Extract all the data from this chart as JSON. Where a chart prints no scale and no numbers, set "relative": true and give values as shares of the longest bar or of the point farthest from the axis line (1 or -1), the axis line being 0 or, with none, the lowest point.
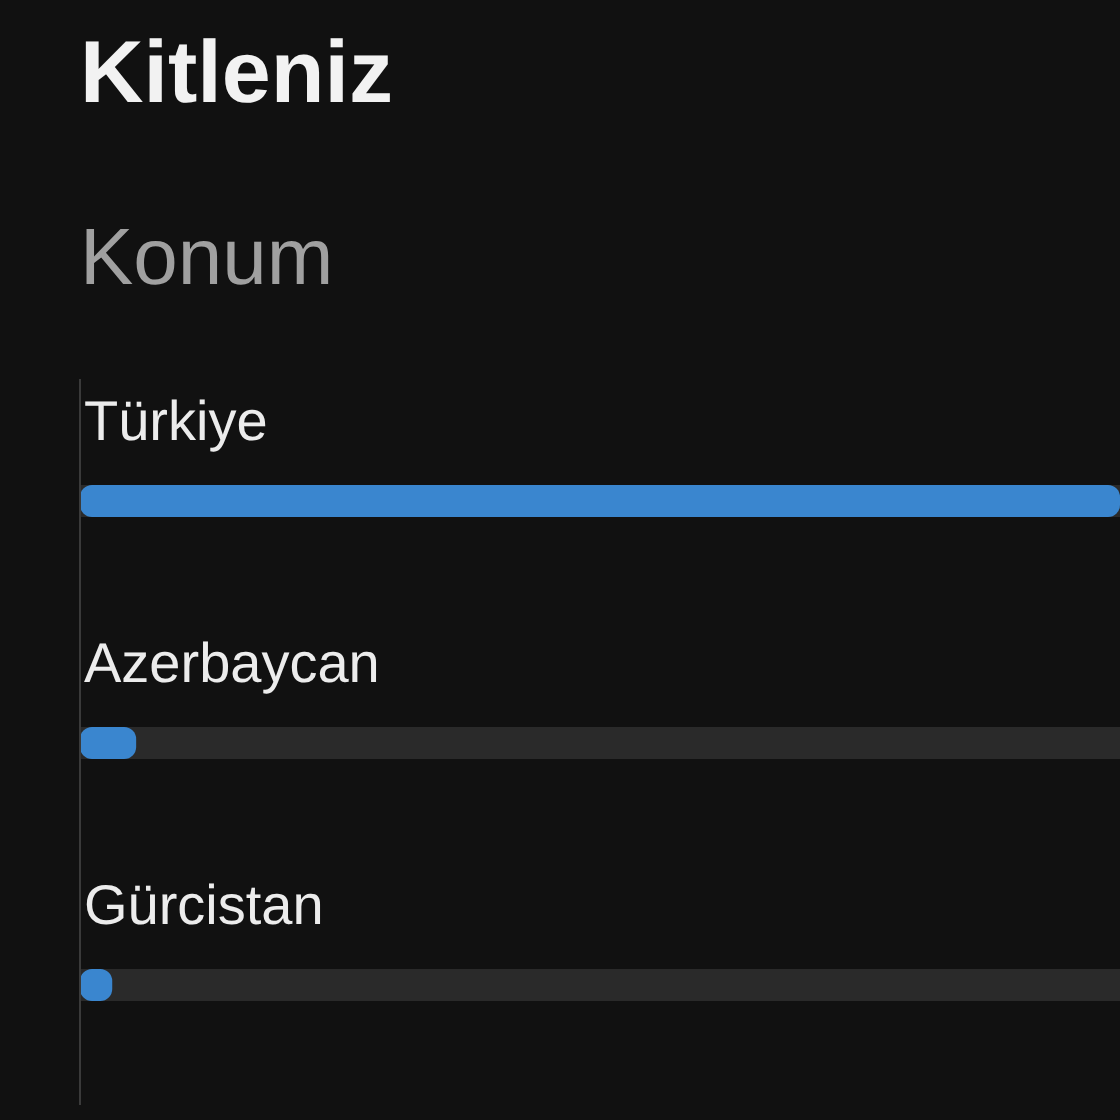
{
  "chart_data": {
    "type": "bar",
    "title": "Kitleniz",
    "subtitle": "Konum",
    "categories": [
      "Türkiye",
      "Azerbaycan",
      "Gürcistan"
    ],
    "values": [
      1,
      0.054,
      0.031
    ],
    "color": "#3a86cf",
    "orientation": "horizontal",
    "relative": true
  }
}
